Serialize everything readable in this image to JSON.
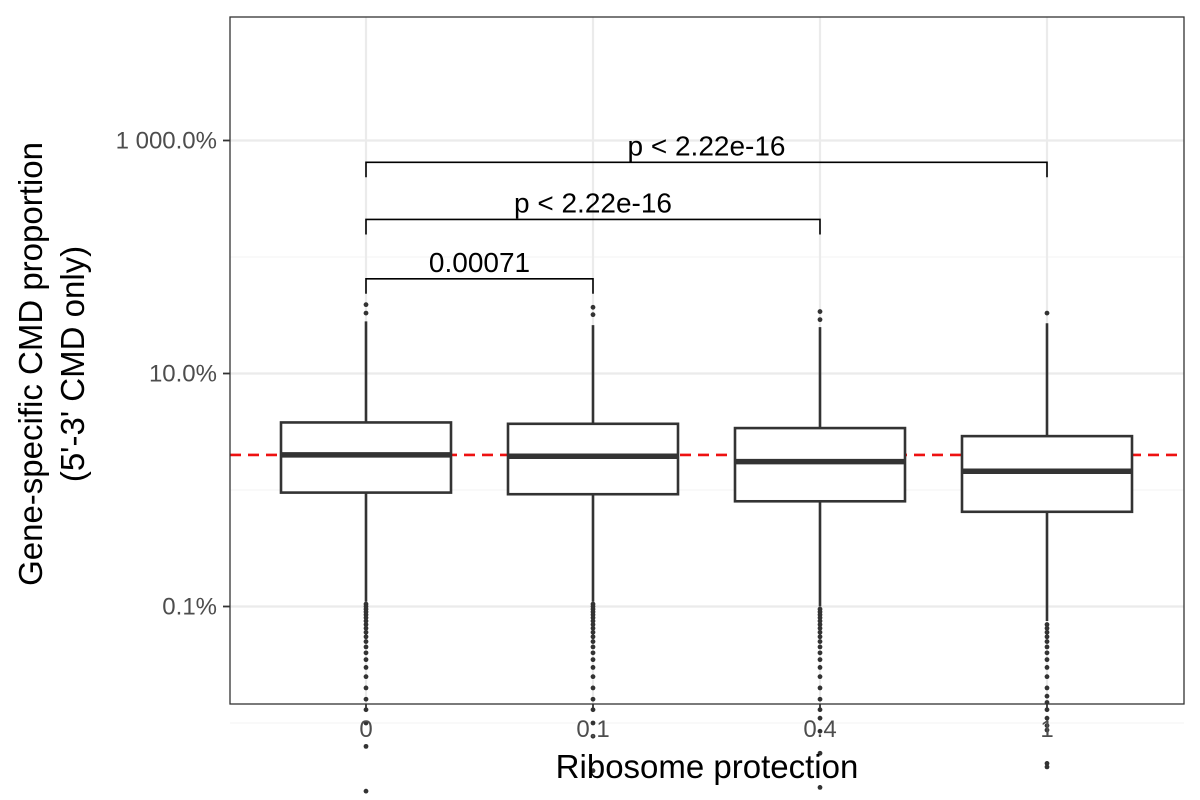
{
  "chart_data": {
    "type": "box",
    "xlabel": "Ribosome protection",
    "ylabel": [
      "Gene-specific CMD proportion",
      "(5'-3' CMD only)"
    ],
    "y_scale": "log10",
    "y_unit": "percent",
    "ylim": [
      0.0038,
      1000
    ],
    "y_ticks": [
      {
        "value": 1000,
        "label": "1 000.0%"
      },
      {
        "value": 10,
        "label": "10.0%"
      },
      {
        "value": 0.1,
        "label": "0.1%"
      }
    ],
    "y_minor_grid": [
      100,
      1,
      0.01
    ],
    "grid": true,
    "categories": [
      "0",
      "0.1",
      "0.4",
      "1"
    ],
    "boxes": [
      {
        "category": "0",
        "whisker_low": 0.11,
        "q1": 0.95,
        "median": 2.0,
        "q3": 3.8,
        "whisker_high": 28,
        "outliers_high": [
          33,
          39
        ],
        "outliers_low": [
          0.105,
          0.1,
          0.095,
          0.09,
          0.085,
          0.08,
          0.075,
          0.07,
          0.065,
          0.06,
          0.055,
          0.05,
          0.045,
          0.04,
          0.035,
          0.03,
          0.025,
          0.02,
          0.016,
          0.013,
          0.01,
          0.0063,
          0.0026
        ]
      },
      {
        "category": "0.1",
        "whisker_low": 0.11,
        "q1": 0.92,
        "median": 1.95,
        "q3": 3.7,
        "whisker_high": 26,
        "outliers_high": [
          32,
          37
        ],
        "outliers_low": [
          0.105,
          0.1,
          0.095,
          0.09,
          0.085,
          0.08,
          0.075,
          0.07,
          0.065,
          0.06,
          0.055,
          0.05,
          0.045,
          0.04,
          0.035,
          0.03,
          0.025,
          0.02,
          0.016,
          0.013,
          0.01,
          0.0077,
          0.0039
        ]
      },
      {
        "category": "0.4",
        "whisker_low": 0.1,
        "q1": 0.8,
        "median": 1.75,
        "q3": 3.4,
        "whisker_high": 25,
        "outliers_high": [
          29,
          34
        ],
        "outliers_low": [
          0.095,
          0.09,
          0.085,
          0.08,
          0.075,
          0.07,
          0.065,
          0.06,
          0.055,
          0.05,
          0.045,
          0.04,
          0.035,
          0.03,
          0.025,
          0.02,
          0.016,
          0.013,
          0.011,
          0.0085,
          0.0055,
          0.0028
        ]
      },
      {
        "category": "1",
        "whisker_low": 0.075,
        "q1": 0.65,
        "median": 1.45,
        "q3": 2.9,
        "whisker_high": 27,
        "outliers_high": [
          33
        ],
        "outliers_low": [
          0.07,
          0.065,
          0.06,
          0.055,
          0.05,
          0.045,
          0.04,
          0.035,
          0.03,
          0.025,
          0.02,
          0.017,
          0.015,
          0.013,
          0.011,
          0.0095,
          0.0087,
          0.0045,
          0.0042
        ]
      }
    ],
    "reference_line": {
      "value": 2.0,
      "color": "#ee1111",
      "style": "dashed"
    },
    "comparisons": [
      {
        "from": "0",
        "to": "0.1",
        "label": "0.00071",
        "y": 65
      },
      {
        "from": "0",
        "to": "0.4",
        "label": "p < 2.22e-16",
        "y": 210
      },
      {
        "from": "0",
        "to": "1",
        "label": "p < 2.22e-16",
        "y": 650
      }
    ],
    "colors": {
      "box_line": "#333333",
      "grid_major": "#ebebeb",
      "grid_minor": "#f5f5f5",
      "panel_border": "#333333"
    }
  }
}
